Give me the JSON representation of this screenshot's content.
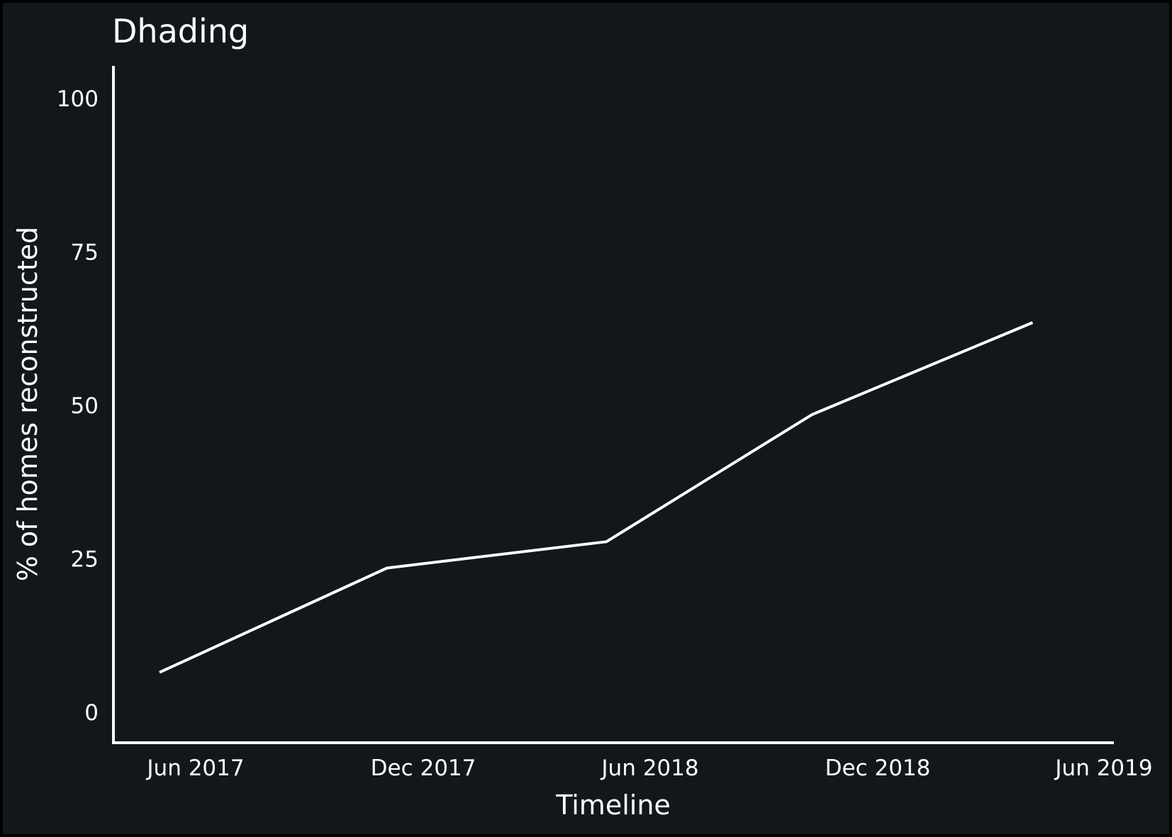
{
  "chart_data": {
    "type": "line",
    "title": "Dhading",
    "xlabel": "Timeline",
    "ylabel": "% of homes reconstructed",
    "x_ticks": [
      "Jun 2017",
      "Dec 2017",
      "Jun 2018",
      "Dec 2018",
      "Jun 2019"
    ],
    "y_ticks": [
      "0",
      "25",
      "50",
      "75",
      "100"
    ],
    "ylim": [
      0,
      100
    ],
    "xlim": [
      "2017-05-01",
      "2019-06-30"
    ],
    "grid": false,
    "legend": "none",
    "colors": {
      "background": "#12181a",
      "line": "#ffffff",
      "text": "#ffffff"
    },
    "series": [
      {
        "points": [
          {
            "x": "2017-05-01",
            "y": 6.5
          },
          {
            "x": "2017-11-15",
            "y": 23.5
          },
          {
            "x": "2018-05-25",
            "y": 27.8
          },
          {
            "x": "2018-11-20",
            "y": 48.5
          },
          {
            "x": "2019-05-31",
            "y": 63.5
          }
        ]
      }
    ]
  }
}
